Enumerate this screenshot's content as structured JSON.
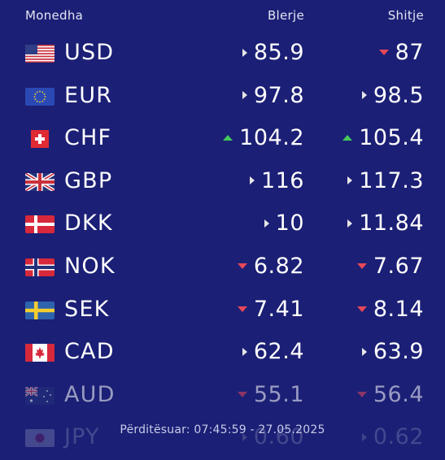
{
  "header": {
    "currency_label": "Monedha",
    "buy_label": "Blerje",
    "sell_label": "Shitje"
  },
  "rows": [
    {
      "code": "USD",
      "buy": "85.9",
      "buy_trend": "neutral",
      "sell": "87",
      "sell_trend": "down"
    },
    {
      "code": "EUR",
      "buy": "97.8",
      "buy_trend": "neutral",
      "sell": "98.5",
      "sell_trend": "neutral"
    },
    {
      "code": "CHF",
      "buy": "104.2",
      "buy_trend": "up",
      "sell": "105.4",
      "sell_trend": "up"
    },
    {
      "code": "GBP",
      "buy": "116",
      "buy_trend": "neutral",
      "sell": "117.3",
      "sell_trend": "neutral"
    },
    {
      "code": "DKK",
      "buy": "10",
      "buy_trend": "neutral",
      "sell": "11.84",
      "sell_trend": "neutral"
    },
    {
      "code": "NOK",
      "buy": "6.82",
      "buy_trend": "down",
      "sell": "7.67",
      "sell_trend": "down"
    },
    {
      "code": "SEK",
      "buy": "7.41",
      "buy_trend": "down",
      "sell": "8.14",
      "sell_trend": "down"
    },
    {
      "code": "CAD",
      "buy": "62.4",
      "buy_trend": "neutral",
      "sell": "63.9",
      "sell_trend": "neutral"
    },
    {
      "code": "AUD",
      "buy": "55.1",
      "buy_trend": "down",
      "sell": "56.4",
      "sell_trend": "down"
    },
    {
      "code": "JPY",
      "buy": "0.60",
      "buy_trend": "neutral",
      "sell": "0.62",
      "sell_trend": "neutral"
    }
  ],
  "footer": {
    "updated_text": "Përditësuar: 07:45:59 - 27.05.2025"
  },
  "colors": {
    "background": "#1b1f75",
    "up": "#43c95a",
    "down": "#e6475a",
    "neutral": "#e6e6e6"
  }
}
